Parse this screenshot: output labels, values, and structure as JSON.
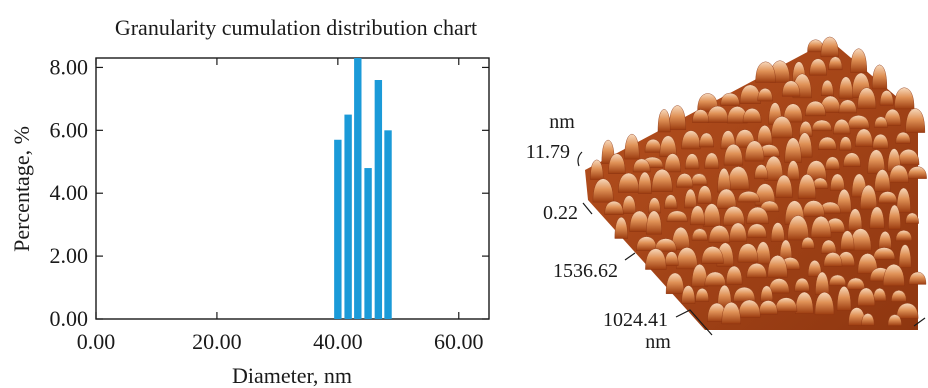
{
  "chart_data": {
    "type": "bar",
    "title": "Granularity cumulation distribution chart",
    "xlabel": "Diameter, nm",
    "ylabel": "Percentage, %",
    "xlim": [
      0,
      65
    ],
    "ylim": [
      0,
      8.3
    ],
    "xticks": [
      "0.00",
      "20.00",
      "40.00",
      "60.00"
    ],
    "xtick_values": [
      0,
      20,
      40,
      60
    ],
    "yticks": [
      "0.00",
      "2.00",
      "4.00",
      "6.00",
      "8.00"
    ],
    "ytick_values": [
      0,
      2,
      4,
      6,
      8
    ],
    "bar_color": "#1b9ad8",
    "grid": false,
    "x": [
      40,
      41.7,
      43.3,
      45,
      46.7,
      48.3
    ],
    "values": [
      5.7,
      6.5,
      8.4,
      4.8,
      7.6,
      6.0
    ]
  },
  "surface_image": {
    "z_unit": "nm",
    "z_ticks": [
      "11.79",
      "0.22"
    ],
    "xy_ticks": [
      "1536.62",
      "1024.41"
    ],
    "xy_unit": "nm",
    "palette": {
      "low": "#7a2a08",
      "mid": "#c9622a",
      "high": "#f2c7a0"
    }
  }
}
